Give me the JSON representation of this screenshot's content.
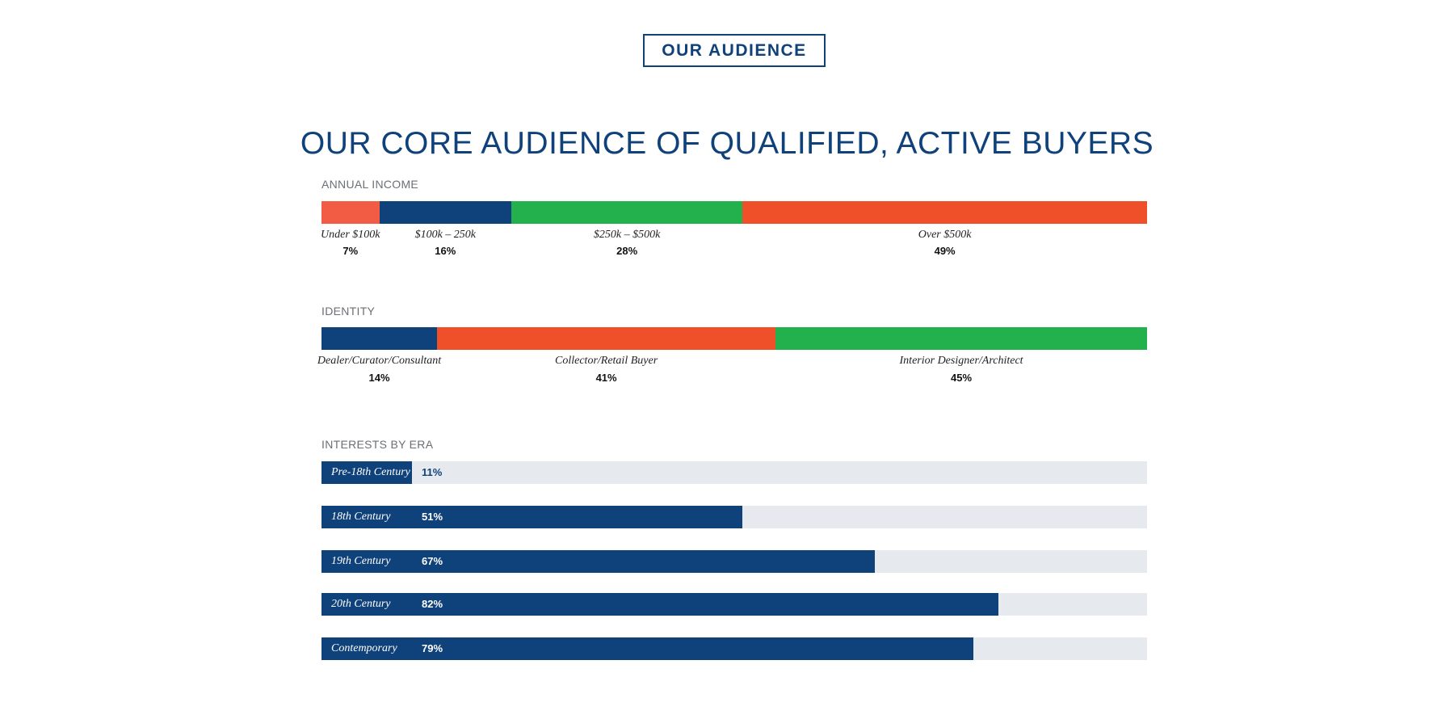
{
  "badge": "OUR AUDIENCE",
  "title": "OUR CORE AUDIENCE OF QUALIFIED, ACTIVE BUYERS",
  "colors": {
    "navy": "#0f417a",
    "coral": "#f25c45",
    "green": "#22b14c",
    "orange": "#ef4f29",
    "track": "#e6eaee"
  },
  "chart_data": [
    {
      "type": "bar",
      "stacked": true,
      "title": "ANNUAL INCOME",
      "categories": [
        "Under $100k",
        "$100k – 250k",
        "$250k – $500k",
        "Over $500k"
      ],
      "values": [
        7,
        16,
        28,
        49
      ],
      "labels": [
        "7%",
        "16%",
        "28%",
        "49%"
      ],
      "colors": [
        "#f25c45",
        "#0f417a",
        "#22b14c",
        "#ef4f29"
      ]
    },
    {
      "type": "bar",
      "stacked": true,
      "title": "IDENTITY",
      "categories": [
        "Dealer/Curator/Consultant",
        "Collector/Retail Buyer",
        "Interior Designer/Architect"
      ],
      "values": [
        14,
        41,
        45
      ],
      "labels": [
        "14%",
        "41%",
        "45%"
      ],
      "colors": [
        "#0f417a",
        "#ef4f29",
        "#22b14c"
      ]
    },
    {
      "type": "bar",
      "orientation": "horizontal",
      "title": "INTERESTS BY ERA",
      "categories": [
        "Pre-18th Century",
        "18th Century",
        "19th Century",
        "20th Century",
        "Contemporary"
      ],
      "values": [
        11,
        51,
        67,
        82,
        79
      ],
      "labels": [
        "11%",
        "51%",
        "67%",
        "82%",
        "79%"
      ],
      "xlim": [
        0,
        100
      ]
    }
  ]
}
